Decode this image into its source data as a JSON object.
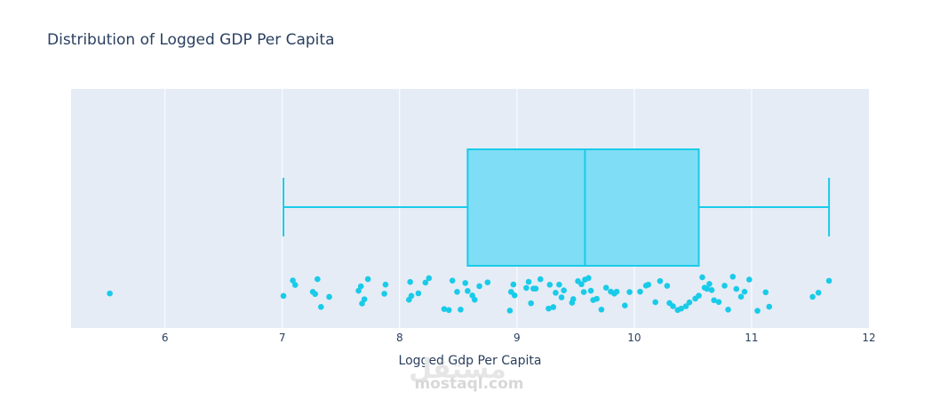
{
  "chart_data": {
    "type": "box",
    "title": "Distribution of Logged GDP Per Capita",
    "xlabel": "Logged Gdp Per Capita",
    "ylabel": "",
    "xlim": [
      5.2,
      12.0
    ],
    "xticks": [
      6,
      7,
      8,
      9,
      10,
      11,
      12
    ],
    "orientation": "horizontal",
    "show_points": "all",
    "grid": true,
    "colors": {
      "box_fill": "#7fdef5",
      "box_line": "#19cbe8",
      "points": "#19cbe8",
      "plot_bg": "#e5ecf6",
      "grid": "#ffffff",
      "text": "#2a3f5f"
    },
    "box": {
      "lower_fence": 7.01,
      "q1": 8.58,
      "median": 9.58,
      "q3": 10.55,
      "upper_fence": 11.66
    },
    "points": [
      5.53,
      7.01,
      7.09,
      7.11,
      7.26,
      7.28,
      7.3,
      7.33,
      7.4,
      7.65,
      7.67,
      7.68,
      7.7,
      7.73,
      7.87,
      7.88,
      8.08,
      8.09,
      8.1,
      8.16,
      8.22,
      8.25,
      8.38,
      8.42,
      8.45,
      8.49,
      8.52,
      8.56,
      8.58,
      8.62,
      8.64,
      8.68,
      8.75,
      8.94,
      8.95,
      8.97,
      8.98,
      9.08,
      9.1,
      9.12,
      9.14,
      9.16,
      9.2,
      9.27,
      9.28,
      9.31,
      9.33,
      9.36,
      9.38,
      9.4,
      9.47,
      9.48,
      9.52,
      9.55,
      9.57,
      9.58,
      9.61,
      9.63,
      9.65,
      9.68,
      9.72,
      9.76,
      9.8,
      9.83,
      9.85,
      9.92,
      9.96,
      10.05,
      10.1,
      10.12,
      10.18,
      10.22,
      10.28,
      10.3,
      10.33,
      10.37,
      10.4,
      10.44,
      10.47,
      10.52,
      10.55,
      10.58,
      10.6,
      10.62,
      10.64,
      10.66,
      10.68,
      10.72,
      10.77,
      10.8,
      10.84,
      10.87,
      10.91,
      10.94,
      10.98,
      11.05,
      11.12,
      11.15,
      11.52,
      11.57,
      11.66
    ]
  },
  "watermark": {
    "logo": "مستقل",
    "text": "mostaql.com"
  }
}
